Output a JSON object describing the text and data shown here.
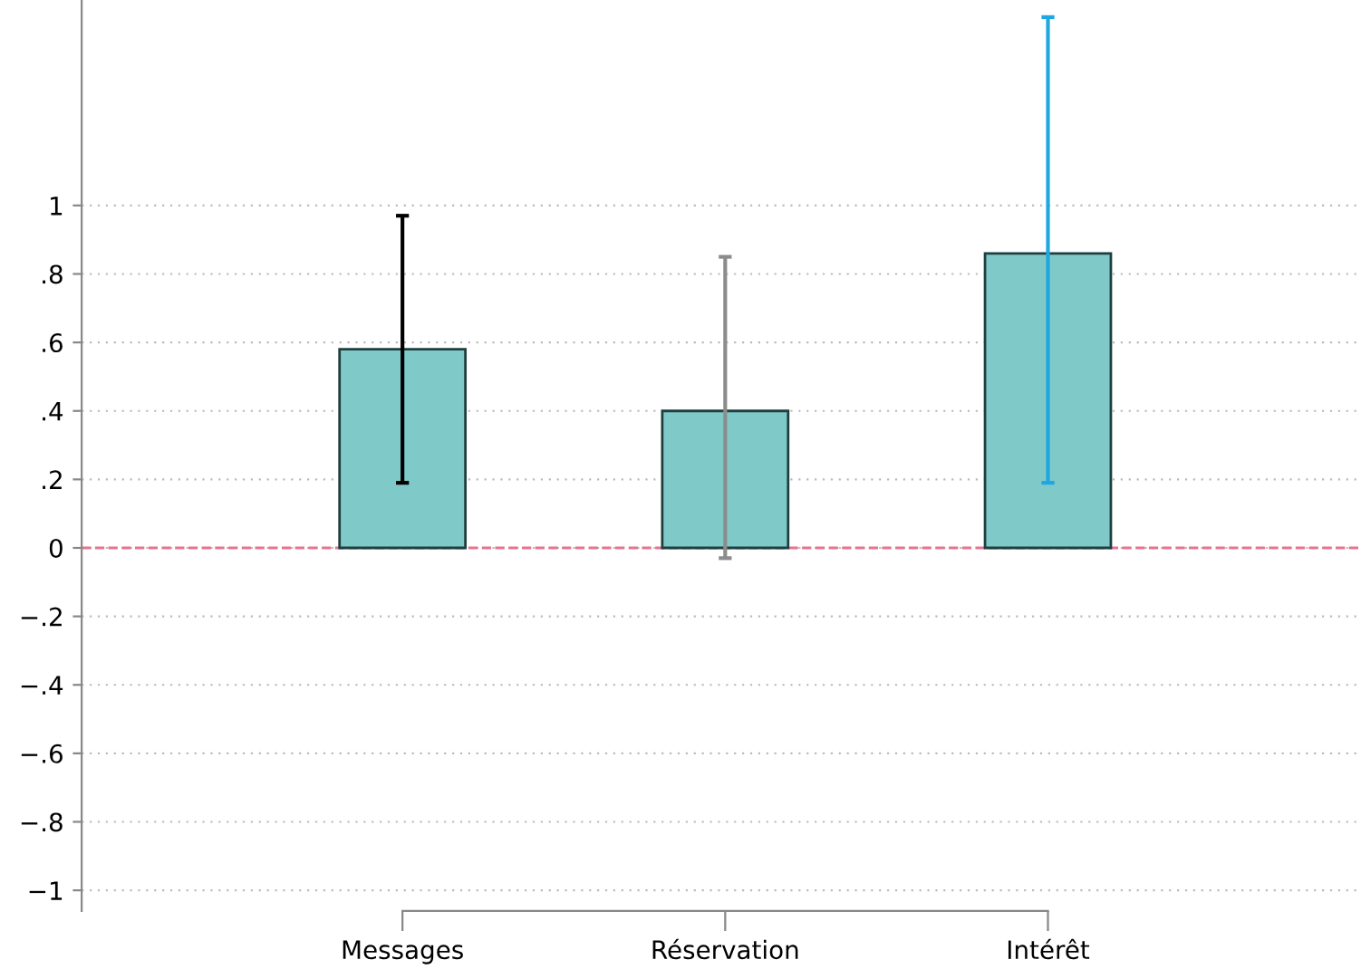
{
  "chart_data": {
    "type": "bar",
    "categories": [
      "Messages",
      "Réservation",
      "Intérêt"
    ],
    "values": [
      0.58,
      0.4,
      0.86
    ],
    "errors": [
      [
        0.19,
        0.97
      ],
      [
        -0.03,
        0.85
      ],
      [
        0.19,
        1.55
      ]
    ],
    "color": "#80c9c9",
    "ylim": [
      -1.06,
      1.6
    ],
    "yticks": [
      {
        "value": -1,
        "label": "−1"
      },
      {
        "value": -0.8,
        "label": "−.8"
      },
      {
        "value": -0.6,
        "label": "−.6"
      },
      {
        "value": -0.4,
        "label": "−.4"
      },
      {
        "value": -0.2,
        "label": "−.2"
      },
      {
        "value": 0,
        "label": "0"
      },
      {
        "value": 0.2,
        "label": ".2"
      },
      {
        "value": 0.4,
        "label": ".4"
      },
      {
        "value": 0.6,
        "label": ".6"
      },
      {
        "value": 0.8,
        "label": ".8"
      },
      {
        "value": 1,
        "label": "1"
      }
    ],
    "grid": "y",
    "ref_lines": [
      {
        "axis": "y",
        "value": 0,
        "color": "#e8738f",
        "line_style": "dashed"
      }
    ]
  }
}
